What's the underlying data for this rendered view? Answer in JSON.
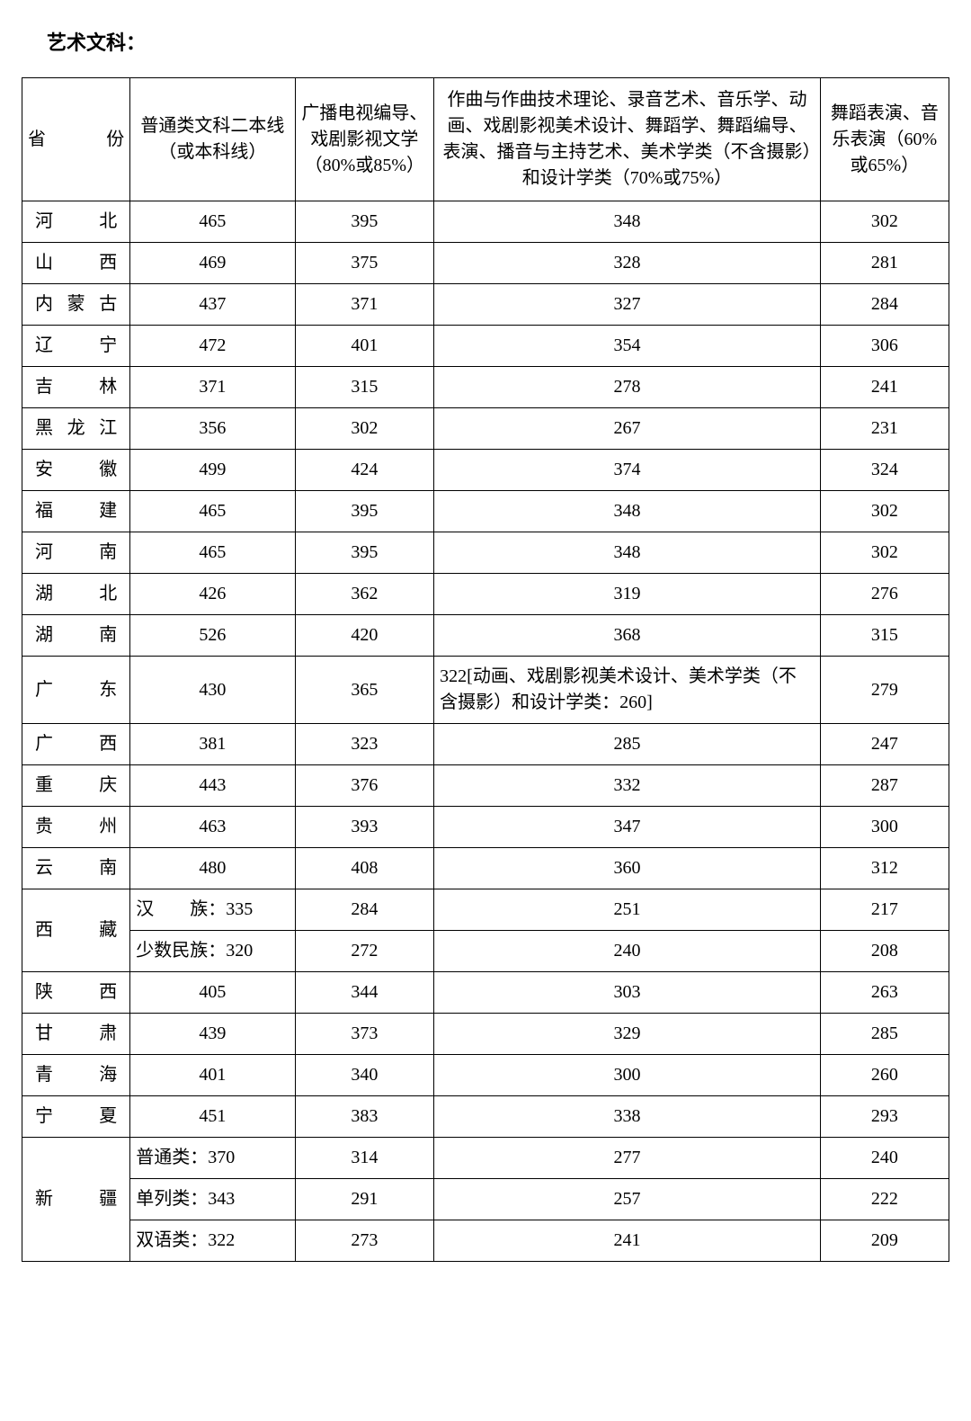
{
  "title": "艺术文科：",
  "columns": {
    "province": "省　份",
    "base": "普通类文科二本线（或本科线）",
    "p80": "广播电视编导、戏剧影视文学（80%或85%）",
    "p70": "作曲与作曲技术理论、录音艺术、音乐学、动画、戏剧影视美术设计、舞蹈学、舞蹈编导、表演、播音与主持艺术、美术学类（不含摄影）和设计学类（70%或75%）",
    "p60": "舞蹈表演、音乐表演（60%或65%）"
  },
  "rows": [
    {
      "province": "河　北",
      "base": "465",
      "p80": "395",
      "p70": "348",
      "p60": "302"
    },
    {
      "province": "山　西",
      "base": "469",
      "p80": "375",
      "p70": "328",
      "p60": "281"
    },
    {
      "province": "内蒙古",
      "base": "437",
      "p80": "371",
      "p70": "327",
      "p60": "284"
    },
    {
      "province": "辽　宁",
      "base": "472",
      "p80": "401",
      "p70": "354",
      "p60": "306"
    },
    {
      "province": "吉　林",
      "base": "371",
      "p80": "315",
      "p70": "278",
      "p60": "241"
    },
    {
      "province": "黑龙江",
      "base": "356",
      "p80": "302",
      "p70": "267",
      "p60": "231"
    },
    {
      "province": "安　徽",
      "base": "499",
      "p80": "424",
      "p70": "374",
      "p60": "324"
    },
    {
      "province": "福　建",
      "base": "465",
      "p80": "395",
      "p70": "348",
      "p60": "302"
    },
    {
      "province": "河　南",
      "base": "465",
      "p80": "395",
      "p70": "348",
      "p60": "302"
    },
    {
      "province": "湖　北",
      "base": "426",
      "p80": "362",
      "p70": "319",
      "p60": "276"
    },
    {
      "province": "湖　南",
      "base": "526",
      "p80": "420",
      "p70": "368",
      "p60": "315"
    },
    {
      "province": "广　东",
      "base": "430",
      "p80": "365",
      "p70": "322[动画、戏剧影视美术设计、美术学类（不含摄影）和设计学类：260]",
      "p70_left": true,
      "p60": "279"
    },
    {
      "province": "广　西",
      "base": "381",
      "p80": "323",
      "p70": "285",
      "p60": "247"
    },
    {
      "province": "重　庆",
      "base": "443",
      "p80": "376",
      "p70": "332",
      "p60": "287"
    },
    {
      "province": "贵　州",
      "base": "463",
      "p80": "393",
      "p70": "347",
      "p60": "300"
    },
    {
      "province": "云　南",
      "base": "480",
      "p80": "408",
      "p70": "360",
      "p60": "312"
    }
  ],
  "xizang": {
    "province": "西　藏",
    "sub": [
      {
        "base": "汉　　族：335",
        "p80": "284",
        "p70": "251",
        "p60": "217"
      },
      {
        "base": "少数民族：320",
        "p80": "272",
        "p70": "240",
        "p60": "208"
      }
    ]
  },
  "rows2": [
    {
      "province": "陕　西",
      "base": "405",
      "p80": "344",
      "p70": "303",
      "p60": "263"
    },
    {
      "province": "甘　肃",
      "base": "439",
      "p80": "373",
      "p70": "329",
      "p60": "285"
    },
    {
      "province": "青　海",
      "base": "401",
      "p80": "340",
      "p70": "300",
      "p60": "260"
    },
    {
      "province": "宁　夏",
      "base": "451",
      "p80": "383",
      "p70": "338",
      "p60": "293"
    }
  ],
  "xinjiang": {
    "province": "新　疆",
    "sub": [
      {
        "base": "普通类：370",
        "p80": "314",
        "p70": "277",
        "p60": "240"
      },
      {
        "base": "单列类：343",
        "p80": "291",
        "p70": "257",
        "p60": "222"
      },
      {
        "base": "双语类：322",
        "p80": "273",
        "p70": "241",
        "p60": "209"
      }
    ]
  }
}
